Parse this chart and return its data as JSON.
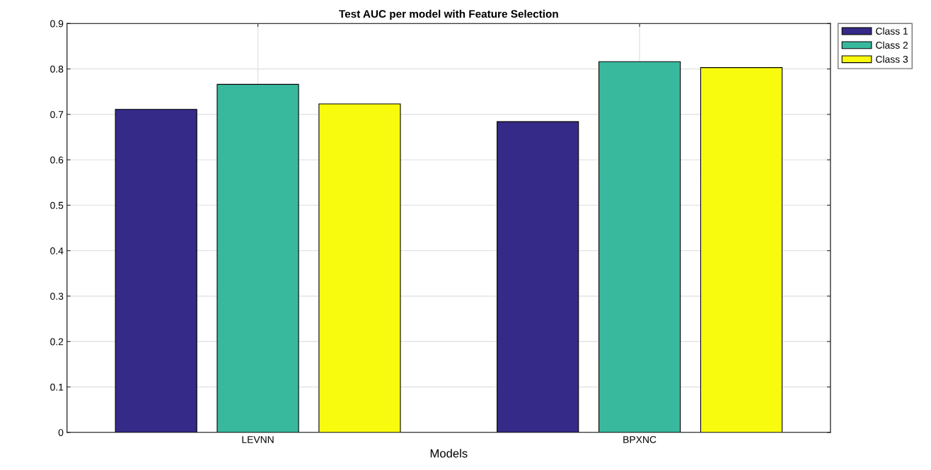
{
  "chart_data": {
    "type": "bar",
    "title": "Test AUC per model with Feature Selection",
    "xlabel": "Models",
    "categories": [
      "LEVNN",
      "BPXNC"
    ],
    "series": [
      {
        "name": "Class 1",
        "color": "#352a87",
        "values": [
          0.711,
          0.684
        ]
      },
      {
        "name": "Class 2",
        "color": "#38b99e",
        "values": [
          0.766,
          0.816
        ]
      },
      {
        "name": "Class 3",
        "color": "#f9fb0e",
        "values": [
          0.723,
          0.803
        ]
      }
    ],
    "ylim": [
      0,
      0.9
    ],
    "yticks": [
      0,
      0.1,
      0.2,
      0.3,
      0.4,
      0.5,
      0.6,
      0.7,
      0.8,
      0.9
    ],
    "grid": true,
    "legend": "top right"
  }
}
